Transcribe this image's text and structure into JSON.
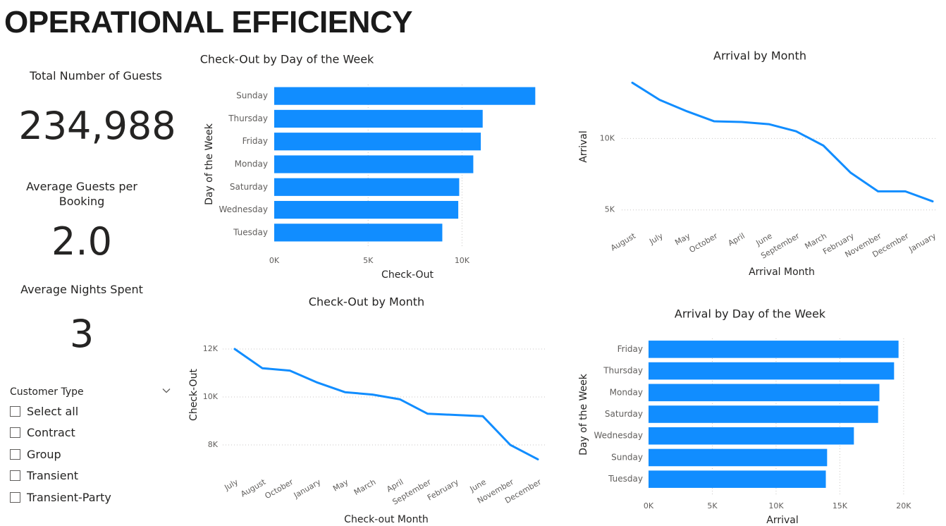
{
  "page": {
    "title": "OPERATIONAL EFFICIENCY"
  },
  "kpis": {
    "total_guests": {
      "label": "Total Number of Guests",
      "value": "234,988"
    },
    "avg_guests": {
      "label_line1": "Average Guests per",
      "label_line2": "Booking",
      "value": "2.0"
    },
    "avg_nights": {
      "label": "Average Nights Spent",
      "value": "3"
    }
  },
  "slicer": {
    "title": "Customer Type",
    "icon": "chevron-down-icon",
    "items": [
      {
        "label": "Select all",
        "checked": false
      },
      {
        "label": "Contract",
        "checked": false
      },
      {
        "label": "Group",
        "checked": false
      },
      {
        "label": "Transient",
        "checked": false
      },
      {
        "label": "Transient-Party",
        "checked": false
      }
    ]
  },
  "colors": {
    "bar": "#118DFF",
    "grid": "#C8C6C4",
    "text": "#605E5C",
    "title": "#252423"
  },
  "chart_data": [
    {
      "id": "checkout-by-day",
      "type": "bar",
      "orientation": "horizontal",
      "title": "Check-Out by Day of the Week",
      "xlabel": "Check-Out",
      "ylabel": "Day of the Week",
      "categories": [
        "Sunday",
        "Thursday",
        "Friday",
        "Monday",
        "Saturday",
        "Wednesday",
        "Tuesday"
      ],
      "values": [
        13900,
        11100,
        11000,
        10600,
        9850,
        9800,
        8950
      ],
      "ticks": [
        0,
        5000,
        10000
      ],
      "tick_labels": [
        "0K",
        "5K",
        "10K"
      ],
      "xlim": [
        0,
        14000
      ],
      "grid": true
    },
    {
      "id": "arrival-by-month",
      "type": "line",
      "title": "Arrival by Month",
      "xlabel": "Arrival Month",
      "ylabel": "Arrival",
      "categories": [
        "August",
        "July",
        "May",
        "October",
        "April",
        "June",
        "September",
        "March",
        "February",
        "November",
        "December",
        "January"
      ],
      "values": [
        13900,
        12700,
        11900,
        11200,
        11150,
        11000,
        10500,
        9500,
        7600,
        6300,
        6300,
        5600
      ],
      "ticks": [
        5000,
        10000
      ],
      "tick_labels": [
        "5K",
        "10K"
      ],
      "ylim": [
        4000,
        15000
      ],
      "grid": true
    },
    {
      "id": "checkout-by-month",
      "type": "line",
      "title": "Check-Out by Month",
      "xlabel": "Check-out Month",
      "ylabel": "Check-Out",
      "categories": [
        "July",
        "August",
        "October",
        "January",
        "May",
        "March",
        "April",
        "September",
        "February",
        "June",
        "November",
        "December"
      ],
      "values": [
        12000,
        11200,
        11100,
        10600,
        10200,
        10100,
        9900,
        9300,
        9250,
        9200,
        8000,
        7400
      ],
      "ticks": [
        8000,
        10000,
        12000
      ],
      "tick_labels": [
        "8K",
        "10K",
        "12K"
      ],
      "ylim": [
        7000,
        12500
      ],
      "grid": true
    },
    {
      "id": "arrival-by-day",
      "type": "bar",
      "orientation": "horizontal",
      "title": "Arrival by Day of the Week",
      "xlabel": "Arrival",
      "ylabel": "Day of the Week",
      "categories": [
        "Friday",
        "Thursday",
        "Monday",
        "Saturday",
        "Wednesday",
        "Sunday",
        "Tuesday"
      ],
      "values": [
        19600,
        19250,
        18100,
        18000,
        16100,
        14000,
        13900
      ],
      "ticks": [
        0,
        5000,
        10000,
        15000,
        20000
      ],
      "tick_labels": [
        "0K",
        "5K",
        "10K",
        "15K",
        "20K"
      ],
      "xlim": [
        0,
        21000
      ],
      "grid": true
    }
  ]
}
